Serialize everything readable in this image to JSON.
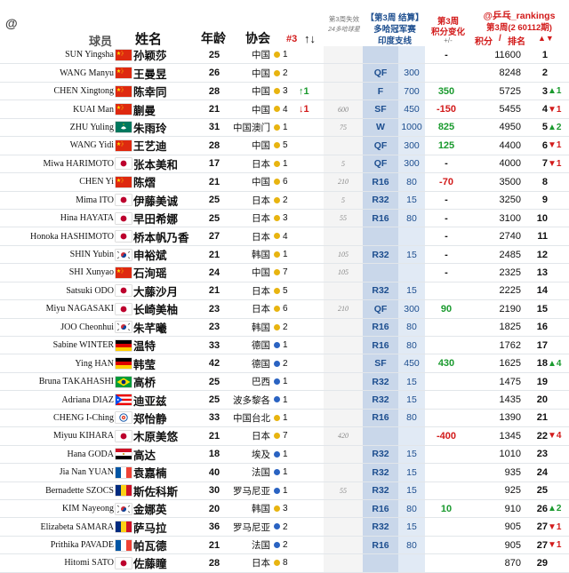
{
  "header": {
    "at_symbol": "@",
    "col_player": "球员",
    "col_name": "姓名",
    "col_age": "年龄",
    "col_assoc": "协会",
    "col_w3": "#3",
    "col_sort": "↑↓",
    "col_lost_l1": "第3周失效",
    "col_lost_l2": "24多哈球星",
    "col_result_l1": "【第3周 结算】",
    "col_result_l2": "多哈冠军赛",
    "col_result_l3": "印度支线",
    "col_change_l1": "第3周",
    "col_change_l2": "积分变化",
    "col_change_l3": "+/-",
    "brand": "@乒乓_rankings",
    "brand_sub": "第3周(2 60112期)",
    "col_points": "积分",
    "col_slash": "/",
    "col_rank": "排名",
    "rank_arrows": "▲▼"
  },
  "colors": {
    "header_blue": "#1d4e8f",
    "red": "#d21a1a",
    "green": "#1a9a2e",
    "result_band": "#c9d7ea",
    "points_band": "#e1eaf5"
  },
  "rows": [
    {
      "en": "SUN Yingsha",
      "flag": "china",
      "cn": "孙颖莎",
      "age": "25",
      "assoc": "中国",
      "dot": "yellow",
      "w3": "1",
      "arrow": "",
      "arrow_dir": "",
      "lost": "",
      "res": "",
      "pts": "",
      "chg": "-",
      "chg_dir": "",
      "total": "11600",
      "rank": "1",
      "rchg": "",
      "rdir": ""
    },
    {
      "en": "WANG Manyu",
      "flag": "china",
      "cn": "王曼昱",
      "age": "26",
      "assoc": "中国",
      "dot": "yellow",
      "w3": "2",
      "arrow": "",
      "arrow_dir": "",
      "lost": "",
      "res": "QF",
      "pts": "300",
      "chg": "",
      "chg_dir": "",
      "total": "8248",
      "rank": "2",
      "rchg": "",
      "rdir": ""
    },
    {
      "en": "CHEN Xingtong",
      "flag": "china",
      "cn": "陈幸同",
      "age": "28",
      "assoc": "中国",
      "dot": "yellow",
      "w3": "3",
      "arrow": "↑1",
      "arrow_dir": "up",
      "lost": "",
      "res": "F",
      "pts": "700",
      "chg": "350",
      "chg_dir": "pos",
      "total": "5725",
      "rank": "3",
      "rchg": "▲1",
      "rdir": "up"
    },
    {
      "en": "KUAI Man",
      "flag": "china",
      "cn": "蒯曼",
      "age": "21",
      "assoc": "中国",
      "dot": "yellow",
      "w3": "4",
      "arrow": "↓1",
      "arrow_dir": "down",
      "lost": "600",
      "res": "SF",
      "pts": "450",
      "chg": "-150",
      "chg_dir": "neg",
      "total": "5455",
      "rank": "4",
      "rchg": "▼1",
      "rdir": "down"
    },
    {
      "en": "ZHU Yuling",
      "flag": "macau",
      "cn": "朱雨玲",
      "age": "31",
      "assoc": "中国澳门",
      "dot": "yellow",
      "w3": "1",
      "arrow": "",
      "arrow_dir": "",
      "lost": "75",
      "res": "W",
      "pts": "1000",
      "chg": "825",
      "chg_dir": "pos",
      "total": "4950",
      "rank": "5",
      "rchg": "▲2",
      "rdir": "up"
    },
    {
      "en": "WANG Yidi",
      "flag": "china",
      "cn": "王艺迪",
      "age": "28",
      "assoc": "中国",
      "dot": "yellow",
      "w3": "5",
      "arrow": "",
      "arrow_dir": "",
      "lost": "",
      "res": "QF",
      "pts": "300",
      "chg": "125",
      "chg_dir": "pos",
      "total": "4400",
      "rank": "6",
      "rchg": "▼1",
      "rdir": "down"
    },
    {
      "en": "Miwa HARIMOTO",
      "flag": "japan",
      "cn": "张本美和",
      "age": "17",
      "assoc": "日本",
      "dot": "yellow",
      "w3": "1",
      "arrow": "",
      "arrow_dir": "",
      "lost": "5",
      "res": "QF",
      "pts": "300",
      "chg": "-",
      "chg_dir": "",
      "total": "4000",
      "rank": "7",
      "rchg": "▼1",
      "rdir": "down"
    },
    {
      "en": "CHEN Yi",
      "flag": "china",
      "cn": "陈熠",
      "age": "21",
      "assoc": "中国",
      "dot": "yellow",
      "w3": "6",
      "arrow": "",
      "arrow_dir": "",
      "lost": "210",
      "res": "R16",
      "pts": "80",
      "chg": "-70",
      "chg_dir": "neg",
      "total": "3500",
      "rank": "8",
      "rchg": "",
      "rdir": ""
    },
    {
      "en": "Mima ITO",
      "flag": "japan",
      "cn": "伊藤美诚",
      "age": "25",
      "assoc": "日本",
      "dot": "yellow",
      "w3": "2",
      "arrow": "",
      "arrow_dir": "",
      "lost": "5",
      "res": "R32",
      "pts": "15",
      "chg": "-",
      "chg_dir": "",
      "total": "3250",
      "rank": "9",
      "rchg": "",
      "rdir": ""
    },
    {
      "en": "Hina HAYATA",
      "flag": "japan",
      "cn": "早田希娜",
      "age": "25",
      "assoc": "日本",
      "dot": "yellow",
      "w3": "3",
      "arrow": "",
      "arrow_dir": "",
      "lost": "55",
      "res": "R16",
      "pts": "80",
      "chg": "-",
      "chg_dir": "",
      "total": "3100",
      "rank": "10",
      "rchg": "",
      "rdir": ""
    },
    {
      "en": "Honoka HASHIMOTO",
      "flag": "japan",
      "cn": "桥本帆乃香",
      "age": "27",
      "assoc": "日本",
      "dot": "yellow",
      "w3": "4",
      "arrow": "",
      "arrow_dir": "",
      "lost": "",
      "res": "",
      "pts": "",
      "chg": "-",
      "chg_dir": "",
      "total": "2740",
      "rank": "11",
      "rchg": "",
      "rdir": ""
    },
    {
      "en": "SHIN Yubin",
      "flag": "korea",
      "cn": "申裕斌",
      "age": "21",
      "assoc": "韩国",
      "dot": "yellow",
      "w3": "1",
      "arrow": "",
      "arrow_dir": "",
      "lost": "105",
      "res": "R32",
      "pts": "15",
      "chg": "-",
      "chg_dir": "",
      "total": "2485",
      "rank": "12",
      "rchg": "",
      "rdir": ""
    },
    {
      "en": "SHI Xunyao",
      "flag": "china",
      "cn": "石洵瑶",
      "age": "24",
      "assoc": "中国",
      "dot": "yellow",
      "w3": "7",
      "arrow": "",
      "arrow_dir": "",
      "lost": "105",
      "res": "",
      "pts": "",
      "chg": "-",
      "chg_dir": "",
      "total": "2325",
      "rank": "13",
      "rchg": "",
      "rdir": ""
    },
    {
      "en": "Satsuki ODO",
      "flag": "japan",
      "cn": "大藤沙月",
      "age": "21",
      "assoc": "日本",
      "dot": "yellow",
      "w3": "5",
      "arrow": "",
      "arrow_dir": "",
      "lost": "",
      "res": "R32",
      "pts": "15",
      "chg": "",
      "chg_dir": "",
      "total": "2225",
      "rank": "14",
      "rchg": "",
      "rdir": ""
    },
    {
      "en": "Miyu NAGASAKI",
      "flag": "japan",
      "cn": "长崎美柚",
      "age": "23",
      "assoc": "日本",
      "dot": "yellow",
      "w3": "6",
      "arrow": "",
      "arrow_dir": "",
      "lost": "210",
      "res": "QF",
      "pts": "300",
      "chg": "90",
      "chg_dir": "pos",
      "total": "2190",
      "rank": "15",
      "rchg": "",
      "rdir": ""
    },
    {
      "en": "JOO Cheonhui",
      "flag": "korea",
      "cn": "朱芊曦",
      "age": "23",
      "assoc": "韩国",
      "dot": "yellow",
      "w3": "2",
      "arrow": "",
      "arrow_dir": "",
      "lost": "",
      "res": "R16",
      "pts": "80",
      "chg": "",
      "chg_dir": "",
      "total": "1825",
      "rank": "16",
      "rchg": "",
      "rdir": ""
    },
    {
      "en": "Sabine WINTER",
      "flag": "germany",
      "cn": "温特",
      "age": "33",
      "assoc": "德国",
      "dot": "blue",
      "w3": "1",
      "arrow": "",
      "arrow_dir": "",
      "lost": "",
      "res": "R16",
      "pts": "80",
      "chg": "",
      "chg_dir": "",
      "total": "1762",
      "rank": "17",
      "rchg": "",
      "rdir": ""
    },
    {
      "en": "Ying HAN",
      "flag": "germany",
      "cn": "韩莹",
      "age": "42",
      "assoc": "德国",
      "dot": "blue",
      "w3": "2",
      "arrow": "",
      "arrow_dir": "",
      "lost": "",
      "res": "SF",
      "pts": "450",
      "chg": "430",
      "chg_dir": "pos",
      "total": "1625",
      "rank": "18",
      "rchg": "▲4",
      "rdir": "up"
    },
    {
      "en": "Bruna TAKAHASHI",
      "flag": "brazil",
      "cn": "高桥",
      "age": "25",
      "assoc": "巴西",
      "dot": "blue",
      "w3": "1",
      "arrow": "",
      "arrow_dir": "",
      "lost": "",
      "res": "R32",
      "pts": "15",
      "chg": "",
      "chg_dir": "",
      "total": "1475",
      "rank": "19",
      "rchg": "",
      "rdir": ""
    },
    {
      "en": "Adriana DIAZ",
      "flag": "puertorico",
      "cn": "迪亚兹",
      "age": "25",
      "assoc": "波多黎各",
      "dot": "blue",
      "w3": "1",
      "arrow": "",
      "arrow_dir": "",
      "lost": "",
      "res": "R32",
      "pts": "15",
      "chg": "",
      "chg_dir": "",
      "total": "1435",
      "rank": "20",
      "rchg": "",
      "rdir": ""
    },
    {
      "en": "CHENG I-Ching",
      "flag": "taipei",
      "cn": "郑怡静",
      "age": "33",
      "assoc": "中国台北",
      "dot": "yellow",
      "w3": "1",
      "arrow": "",
      "arrow_dir": "",
      "lost": "",
      "res": "R16",
      "pts": "80",
      "chg": "",
      "chg_dir": "",
      "total": "1390",
      "rank": "21",
      "rchg": "",
      "rdir": ""
    },
    {
      "en": "Miyuu KIHARA",
      "flag": "japan",
      "cn": "木原美悠",
      "age": "21",
      "assoc": "日本",
      "dot": "yellow",
      "w3": "7",
      "arrow": "",
      "arrow_dir": "",
      "lost": "420",
      "res": "",
      "pts": "",
      "chg": "-400",
      "chg_dir": "neg",
      "total": "1345",
      "rank": "22",
      "rchg": "▼4",
      "rdir": "down"
    },
    {
      "en": "Hana GODA",
      "flag": "egypt",
      "cn": "高达",
      "age": "18",
      "assoc": "埃及",
      "dot": "blue",
      "w3": "1",
      "arrow": "",
      "arrow_dir": "",
      "lost": "",
      "res": "R32",
      "pts": "15",
      "chg": "",
      "chg_dir": "",
      "total": "1010",
      "rank": "23",
      "rchg": "",
      "rdir": ""
    },
    {
      "en": "Jia Nan YUAN",
      "flag": "france",
      "cn": "袁嘉楠",
      "age": "40",
      "assoc": "法国",
      "dot": "blue",
      "w3": "1",
      "arrow": "",
      "arrow_dir": "",
      "lost": "",
      "res": "R32",
      "pts": "15",
      "chg": "",
      "chg_dir": "",
      "total": "935",
      "rank": "24",
      "rchg": "",
      "rdir": ""
    },
    {
      "en": "Bernadette SZOCS",
      "flag": "romania",
      "cn": "斯佐科斯",
      "age": "30",
      "assoc": "罗马尼亚",
      "dot": "blue",
      "w3": "1",
      "arrow": "",
      "arrow_dir": "",
      "lost": "55",
      "res": "R32",
      "pts": "15",
      "chg": "",
      "chg_dir": "",
      "total": "925",
      "rank": "25",
      "rchg": "",
      "rdir": ""
    },
    {
      "en": "KIM Nayeong",
      "flag": "korea",
      "cn": "金娜英",
      "age": "20",
      "assoc": "韩国",
      "dot": "yellow",
      "w3": "3",
      "arrow": "",
      "arrow_dir": "",
      "lost": "",
      "res": "R16",
      "pts": "80",
      "chg": "10",
      "chg_dir": "pos",
      "total": "910",
      "rank": "26",
      "rchg": "▲2",
      "rdir": "up"
    },
    {
      "en": "Elizabeta SAMARA",
      "flag": "romania",
      "cn": "萨马拉",
      "age": "36",
      "assoc": "罗马尼亚",
      "dot": "blue",
      "w3": "2",
      "arrow": "",
      "arrow_dir": "",
      "lost": "",
      "res": "R32",
      "pts": "15",
      "chg": "",
      "chg_dir": "",
      "total": "905",
      "rank": "27",
      "rchg": "▼1",
      "rdir": "down"
    },
    {
      "en": "Prithika PAVADE",
      "flag": "france",
      "cn": "帕瓦德",
      "age": "21",
      "assoc": "法国",
      "dot": "blue",
      "w3": "2",
      "arrow": "",
      "arrow_dir": "",
      "lost": "",
      "res": "R16",
      "pts": "80",
      "chg": "",
      "chg_dir": "",
      "total": "905",
      "rank": "27",
      "rchg": "▼1",
      "rdir": "down"
    },
    {
      "en": "Hitomi SATO",
      "flag": "japan",
      "cn": "佐藤瞳",
      "age": "28",
      "assoc": "日本",
      "dot": "yellow",
      "w3": "8",
      "arrow": "",
      "arrow_dir": "",
      "lost": "",
      "res": "",
      "pts": "",
      "chg": "",
      "chg_dir": "",
      "total": "870",
      "rank": "29",
      "rchg": "",
      "rdir": ""
    }
  ]
}
